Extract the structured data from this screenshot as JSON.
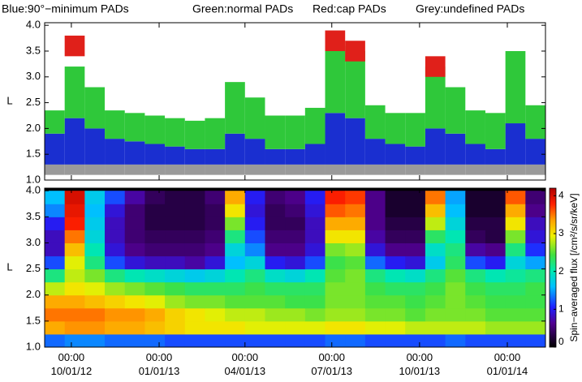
{
  "chart_data": [
    {
      "type": "range",
      "x": [
        "2012-09-03",
        "2012-09-24",
        "2012-10-15",
        "2012-11-05",
        "2012-11-26",
        "2012-12-17",
        "2013-01-07",
        "2013-01-28",
        "2013-02-18",
        "2013-03-11",
        "2013-04-01",
        "2013-04-22",
        "2013-05-13",
        "2013-06-03",
        "2013-06-24",
        "2013-07-15",
        "2013-08-05",
        "2013-08-26",
        "2013-09-16",
        "2013-10-07",
        "2013-10-28",
        "2013-11-18",
        "2013-12-09",
        "2013-12-30",
        "2014-01-20"
      ],
      "xlim": [
        "2012-09-03",
        "2014-02-10"
      ],
      "ylabel": "L",
      "ylim": [
        1.0,
        4.05
      ],
      "yticks": [
        {
          "value": 1.0,
          "label": "1.0"
        },
        {
          "value": 1.5,
          "label": "1.5"
        },
        {
          "value": 2.0,
          "label": "2.0"
        },
        {
          "value": 2.5,
          "label": "2.5"
        },
        {
          "value": 3.0,
          "label": "3.0"
        },
        {
          "value": 3.5,
          "label": "3.5"
        },
        {
          "value": 4.0,
          "label": "4.0"
        }
      ],
      "series": [
        {
          "name": "Blue:90°−minimum PADs",
          "color": "#1a2fd0",
          "low": [
            1.3,
            1.3,
            1.3,
            1.3,
            1.3,
            1.3,
            1.3,
            1.3,
            1.3,
            1.3,
            1.3,
            1.3,
            1.3,
            1.3,
            1.3,
            1.3,
            1.3,
            1.3,
            1.3,
            1.3,
            1.3,
            1.3,
            1.3,
            1.3,
            1.3
          ],
          "high": [
            1.9,
            2.2,
            2.0,
            1.8,
            1.75,
            1.7,
            1.65,
            1.6,
            1.6,
            1.9,
            1.8,
            1.6,
            1.6,
            1.7,
            2.3,
            2.2,
            1.8,
            1.7,
            1.65,
            2.0,
            1.9,
            1.7,
            1.6,
            2.1,
            1.8
          ]
        },
        {
          "name": "Green:normal PADs",
          "color": "#2fc83a",
          "low": [
            1.9,
            2.2,
            2.0,
            1.8,
            1.75,
            1.7,
            1.65,
            1.6,
            1.6,
            1.9,
            1.8,
            1.6,
            1.6,
            1.7,
            2.3,
            2.2,
            1.8,
            1.7,
            1.65,
            2.0,
            1.9,
            1.7,
            1.6,
            2.1,
            1.8
          ],
          "high": [
            2.35,
            3.2,
            2.8,
            2.35,
            2.3,
            2.25,
            2.2,
            2.15,
            2.2,
            2.9,
            2.6,
            2.25,
            2.25,
            2.4,
            3.6,
            3.5,
            2.45,
            2.3,
            2.3,
            3.2,
            2.8,
            2.35,
            2.3,
            3.5,
            2.45
          ]
        },
        {
          "name": "Red:cap PADs",
          "color": "#e0201a",
          "low": [
            null,
            3.4,
            null,
            null,
            null,
            null,
            null,
            null,
            null,
            null,
            null,
            null,
            null,
            null,
            3.5,
            3.3,
            null,
            null,
            null,
            3.0,
            null,
            null,
            null,
            null,
            null
          ],
          "high": [
            null,
            3.8,
            null,
            null,
            null,
            null,
            null,
            null,
            null,
            null,
            null,
            null,
            null,
            null,
            3.9,
            3.7,
            null,
            null,
            null,
            3.4,
            null,
            null,
            null,
            null,
            null
          ]
        },
        {
          "name": "Grey:undefined PADs",
          "color": "#9a9a9a",
          "low": [
            1.1,
            1.1,
            1.1,
            1.1,
            1.1,
            1.1,
            1.1,
            1.1,
            1.1,
            1.1,
            1.1,
            1.1,
            1.1,
            1.1,
            1.1,
            1.1,
            1.1,
            1.1,
            1.1,
            1.1,
            1.1,
            1.1,
            1.1,
            1.1,
            1.1
          ],
          "high": [
            1.3,
            1.3,
            1.3,
            1.3,
            1.3,
            1.3,
            1.3,
            1.3,
            1.3,
            1.3,
            1.3,
            1.3,
            1.3,
            1.3,
            1.3,
            1.3,
            1.3,
            1.3,
            1.3,
            1.3,
            1.3,
            1.3,
            1.3,
            1.3,
            1.3
          ]
        }
      ]
    },
    {
      "type": "heatmap",
      "x": [
        "2012-09-03",
        "2012-09-24",
        "2012-10-15",
        "2012-11-05",
        "2012-11-26",
        "2012-12-17",
        "2013-01-07",
        "2013-01-28",
        "2013-02-18",
        "2013-03-11",
        "2013-04-01",
        "2013-04-22",
        "2013-05-13",
        "2013-06-03",
        "2013-06-24",
        "2013-07-15",
        "2013-08-05",
        "2013-08-26",
        "2013-09-16",
        "2013-10-07",
        "2013-10-28",
        "2013-11-18",
        "2013-12-09",
        "2013-12-30",
        "2014-01-20"
      ],
      "xlim": [
        "2012-09-03",
        "2014-02-10"
      ],
      "xticks": [
        {
          "value": "2012-10-01",
          "label": "00:00\n10/01/12"
        },
        {
          "value": "2013-01-01",
          "label": "00:00\n01/01/13"
        },
        {
          "value": "2013-04-01",
          "label": "00:00\n04/01/13"
        },
        {
          "value": "2013-07-01",
          "label": "00:00\n07/01/13"
        },
        {
          "value": "2013-10-01",
          "label": "00:00\n10/01/13"
        },
        {
          "value": "2014-01-01",
          "label": "00:00\n01/01/14"
        }
      ],
      "ylabel": "L",
      "ylim": [
        1.0,
        4.05
      ],
      "yticks": [
        {
          "value": 1.0,
          "label": "1.0"
        },
        {
          "value": 1.5,
          "label": "1.5"
        },
        {
          "value": 2.0,
          "label": "2.0"
        },
        {
          "value": 2.5,
          "label": "2.5"
        },
        {
          "value": 3.0,
          "label": "3.0"
        },
        {
          "value": 3.5,
          "label": "3.5"
        },
        {
          "value": 4.0,
          "label": "4.0"
        }
      ],
      "ybins": [
        1.0,
        1.25,
        1.5,
        1.75,
        2.0,
        2.25,
        2.5,
        2.75,
        3.0,
        3.25,
        3.5,
        3.75,
        4.0
      ],
      "z": [
        [
          1.3,
          1.4,
          1.4,
          1.3,
          1.3,
          1.3,
          1.2,
          1.2,
          1.2,
          1.2,
          1.2,
          1.2,
          1.2,
          1.2,
          1.3,
          1.3,
          1.2,
          1.2,
          1.2,
          1.2,
          1.3,
          1.2,
          1.2,
          1.2,
          1.2
        ],
        [
          3.3,
          3.4,
          3.4,
          3.3,
          3.3,
          3.2,
          3.1,
          3.0,
          3.0,
          3.0,
          2.9,
          2.9,
          2.9,
          2.9,
          3.0,
          3.0,
          2.9,
          2.9,
          2.8,
          2.8,
          2.8,
          2.8,
          2.7,
          2.7,
          2.7
        ],
        [
          3.5,
          3.5,
          3.5,
          3.4,
          3.4,
          3.3,
          3.1,
          3.0,
          2.9,
          2.8,
          2.8,
          2.7,
          2.7,
          2.6,
          2.7,
          2.7,
          2.6,
          2.6,
          2.5,
          2.6,
          2.6,
          2.6,
          2.5,
          2.5,
          2.5
        ],
        [
          3.3,
          3.3,
          3.2,
          3.1,
          3.0,
          2.9,
          2.7,
          2.6,
          2.6,
          2.5,
          2.5,
          2.5,
          2.4,
          2.4,
          2.6,
          2.6,
          2.5,
          2.5,
          2.4,
          2.5,
          2.6,
          2.5,
          2.4,
          2.4,
          2.4
        ],
        [
          2.8,
          3.0,
          2.9,
          2.7,
          2.6,
          2.5,
          2.4,
          2.3,
          2.3,
          2.3,
          2.4,
          2.3,
          2.3,
          2.3,
          2.6,
          2.6,
          2.4,
          2.3,
          2.3,
          2.4,
          2.6,
          2.4,
          2.3,
          2.3,
          2.4
        ],
        [
          2.2,
          2.8,
          2.6,
          2.2,
          2.0,
          1.9,
          1.8,
          1.7,
          1.8,
          2.0,
          2.2,
          1.9,
          1.8,
          2.0,
          2.5,
          2.6,
          2.2,
          2.0,
          1.9,
          2.2,
          2.5,
          2.2,
          2.0,
          2.1,
          2.2
        ],
        [
          1.2,
          2.9,
          2.2,
          1.2,
          0.9,
          0.8,
          0.8,
          0.7,
          0.9,
          1.6,
          1.8,
          1.0,
          0.9,
          1.2,
          2.4,
          2.5,
          1.3,
          1.0,
          0.9,
          1.7,
          2.3,
          1.2,
          1.0,
          1.8,
          1.5
        ],
        [
          0.8,
          3.2,
          2.0,
          0.9,
          0.6,
          0.5,
          0.5,
          0.5,
          0.6,
          1.8,
          1.4,
          0.6,
          0.6,
          0.9,
          2.6,
          2.7,
          0.9,
          0.6,
          0.6,
          1.9,
          2.2,
          0.7,
          0.6,
          2.2,
          1.1
        ],
        [
          0.8,
          3.5,
          1.8,
          0.8,
          0.5,
          0.4,
          0.4,
          0.4,
          0.5,
          2.2,
          1.2,
          0.5,
          0.5,
          0.8,
          3.0,
          3.0,
          0.7,
          0.4,
          0.4,
          2.3,
          2.0,
          0.4,
          0.3,
          2.6,
          0.9
        ],
        [
          1.0,
          3.8,
          1.7,
          0.8,
          0.5,
          0.3,
          0.3,
          0.3,
          0.4,
          2.6,
          1.0,
          0.4,
          0.4,
          0.8,
          3.3,
          3.3,
          0.6,
          0.3,
          0.3,
          2.8,
          1.8,
          0.3,
          0.3,
          3.0,
          0.8
        ],
        [
          1.4,
          3.9,
          1.6,
          0.9,
          0.5,
          0.3,
          0.3,
          0.3,
          0.4,
          3.0,
          0.9,
          0.4,
          0.5,
          0.9,
          3.6,
          3.5,
          0.6,
          0.2,
          0.2,
          3.2,
          1.6,
          0.2,
          0.2,
          3.3,
          0.6
        ],
        [
          1.6,
          4.0,
          1.7,
          1.2,
          0.7,
          0.4,
          0.3,
          0.3,
          0.5,
          3.3,
          1.0,
          0.5,
          0.6,
          1.0,
          3.8,
          3.7,
          0.6,
          0.2,
          0.2,
          3.5,
          1.5,
          0.2,
          0.2,
          3.6,
          0.5
        ]
      ],
      "colormap": "rainbow",
      "zlim": [
        0,
        4.2
      ],
      "zticks": [
        0,
        1,
        2,
        3,
        4
      ],
      "zlabel": "Spin−averaged flux [/cm²/s/sr/keV]"
    }
  ]
}
